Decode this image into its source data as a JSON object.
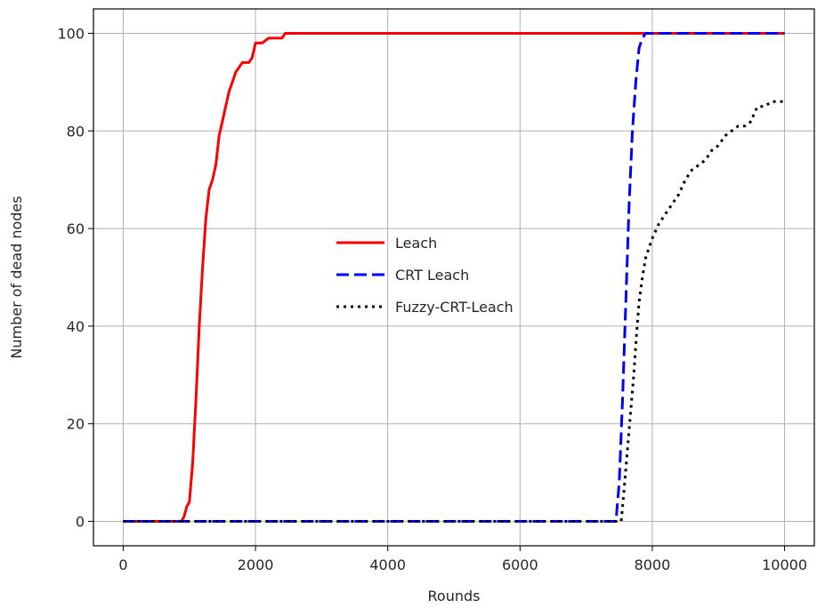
{
  "chart_data": {
    "type": "line",
    "title": "",
    "xlabel": "Rounds",
    "ylabel": "Number of dead nodes",
    "xlim": [
      -450,
      10450
    ],
    "ylim": [
      -5,
      105
    ],
    "xticks": [
      0,
      2000,
      4000,
      6000,
      8000,
      10000
    ],
    "yticks": [
      0,
      20,
      40,
      60,
      80,
      100
    ],
    "grid": true,
    "legend": {
      "placement": "center"
    },
    "series": [
      {
        "name": "Leach",
        "color": "#ff0000",
        "style": "solid",
        "x": [
          0,
          880,
          920,
          960,
          1000,
          1050,
          1100,
          1150,
          1200,
          1250,
          1300,
          1350,
          1400,
          1450,
          1500,
          1550,
          1600,
          1650,
          1700,
          1750,
          1800,
          1900,
          1950,
          2000,
          2100,
          2200,
          2400,
          2450,
          10000
        ],
        "y": [
          0,
          0,
          1,
          3,
          4,
          12,
          25,
          40,
          52,
          62,
          68,
          70,
          73,
          79,
          82,
          85,
          88,
          90,
          92,
          93,
          94,
          94,
          95,
          98,
          98,
          99,
          99,
          100,
          100
        ]
      },
      {
        "name": "CRT Leach",
        "color": "#0000ff",
        "style": "dashed",
        "x": [
          0,
          7450,
          7500,
          7550,
          7600,
          7650,
          7700,
          7750,
          7800,
          7850,
          7900,
          10000
        ],
        "y": [
          0,
          0,
          8,
          25,
          45,
          65,
          80,
          90,
          97,
          99,
          100,
          100
        ]
      },
      {
        "name": "Fuzzy-CRT-Leach",
        "color": "#000000",
        "style": "dotted",
        "x": [
          0,
          7530,
          7570,
          7620,
          7670,
          7720,
          7760,
          7800,
          7850,
          7900,
          8000,
          8100,
          8200,
          8300,
          8400,
          8500,
          8600,
          8700,
          8800,
          8900,
          9000,
          9100,
          9200,
          9300,
          9400,
          9500,
          9550,
          9600,
          9700,
          9800,
          10000
        ],
        "y": [
          0,
          0,
          6,
          14,
          22,
          30,
          38,
          45,
          50,
          54,
          58,
          61,
          63,
          65,
          67,
          70,
          72,
          73,
          74,
          76,
          77,
          79,
          80,
          81,
          81,
          82,
          84,
          85,
          85,
          86,
          86
        ]
      }
    ]
  }
}
